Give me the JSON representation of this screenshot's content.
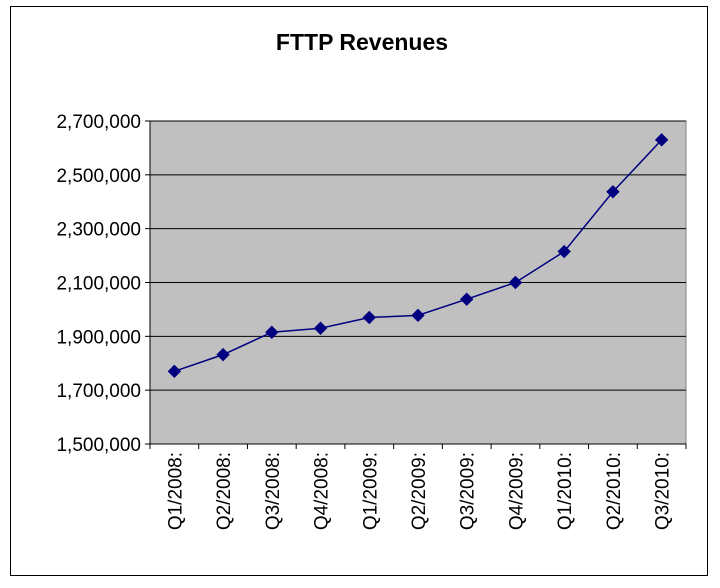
{
  "chart_data": {
    "type": "line",
    "title": "FTTP Revenues",
    "xlabel": "",
    "ylabel": "",
    "categories": [
      "Q1/2008:",
      "Q2/2008:",
      "Q3/2008:",
      "Q4/2008:",
      "Q1/2009:",
      "Q2/2009:",
      "Q3/2009:",
      "Q4/2009:",
      "Q1/2010:",
      "Q2/2010:",
      "Q3/2010:"
    ],
    "series": [
      {
        "values": [
          1770000,
          1832000,
          1915000,
          1930000,
          1970000,
          1978000,
          2038000,
          2100000,
          2215000,
          2437000,
          2630000
        ]
      }
    ],
    "ylim": [
      1500000,
      2700000
    ],
    "yticks": [
      1500000,
      1700000,
      1900000,
      2100000,
      2300000,
      2500000,
      2700000
    ],
    "ytick_labels": [
      "1,500,000",
      "1,700,000",
      "1,900,000",
      "2,100,000",
      "2,300,000",
      "2,500,000",
      "2,700,000"
    ],
    "grid": true,
    "legend": "none",
    "colors": {
      "line": "#000080",
      "marker": "#000080",
      "plot_background": "#c0c0c0",
      "gridline": "#000000"
    }
  }
}
